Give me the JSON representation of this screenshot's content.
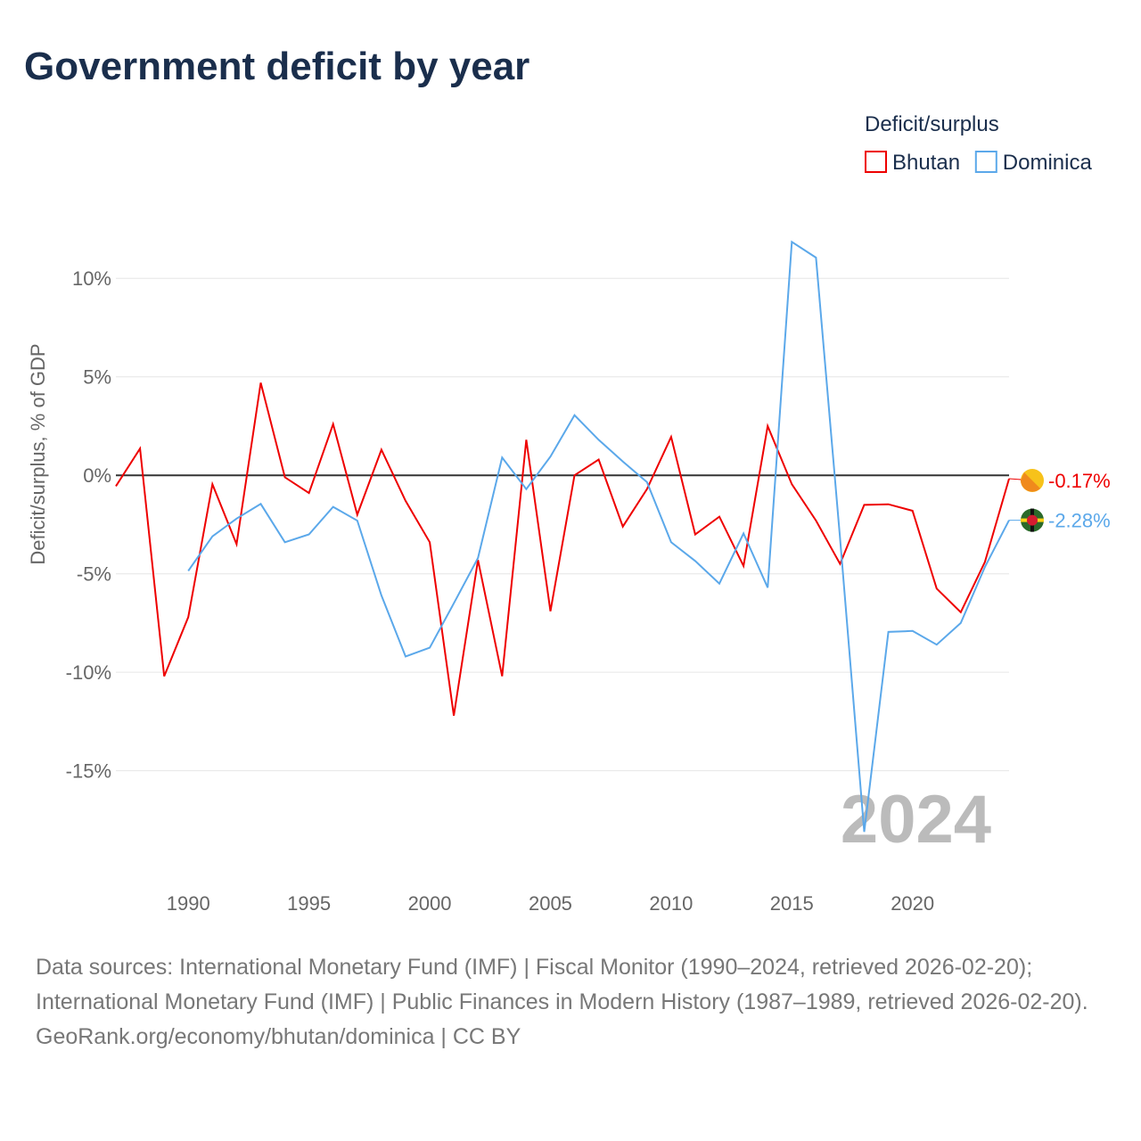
{
  "title": "Government deficit by year",
  "footer": {
    "sources": "Data sources: International Monetary Fund (IMF) | Fiscal Monitor (1990–2024, retrieved 2026-02-20); International Monetary Fund (IMF) | Public Finances in Modern History (1987–1989, retrieved 2026-02-20).",
    "credit": "GeoRank.org/economy/bhutan/dominica | CC BY"
  },
  "chart_data": {
    "type": "line",
    "title": "Government deficit by year",
    "ylabel": "Deficit/surplus, % of GDP",
    "xlabel": "",
    "legend_title": "Deficit/surplus",
    "legend_position": "top-right",
    "year_watermark": "2024",
    "xlim": [
      1987,
      2024
    ],
    "ylim": [
      -18.5,
      12.5
    ],
    "x_ticks": [
      1990,
      1995,
      2000,
      2005,
      2010,
      2015,
      2020
    ],
    "y_ticks": [
      10,
      5,
      0,
      -5,
      -10,
      -15
    ],
    "y_tick_labels": [
      "10%",
      "5%",
      "0%",
      "-5%",
      "-10%",
      "-15%"
    ],
    "series": [
      {
        "name": "Bhutan",
        "color": "#ee0000",
        "end_label": "-0.17%",
        "flag": "bhutan-flag",
        "x": [
          1987,
          1988,
          1989,
          1990,
          1991,
          1992,
          1993,
          1994,
          1995,
          1996,
          1997,
          1998,
          1999,
          2000,
          2001,
          2002,
          2003,
          2004,
          2005,
          2006,
          2007,
          2008,
          2009,
          2010,
          2011,
          2012,
          2013,
          2014,
          2015,
          2016,
          2017,
          2018,
          2019,
          2020,
          2021,
          2022,
          2023,
          2024
        ],
        "values": [
          -0.55,
          1.36,
          -10.2,
          -7.2,
          -0.45,
          -3.5,
          4.7,
          -0.1,
          -0.9,
          2.6,
          -2.0,
          1.3,
          -1.3,
          -3.4,
          -12.2,
          -4.3,
          -10.2,
          1.8,
          -6.9,
          0.0,
          0.8,
          -2.6,
          -0.7,
          1.95,
          -3.0,
          -2.1,
          -4.6,
          2.5,
          -0.45,
          -2.3,
          -4.5,
          -1.5,
          -1.47,
          -1.8,
          -5.75,
          -6.95,
          -4.4,
          -0.17
        ]
      },
      {
        "name": "Dominica",
        "color": "#5ba8ea",
        "end_label": "-2.28%",
        "flag": "dominica-flag",
        "x": [
          1990,
          1991,
          1992,
          1993,
          1994,
          1995,
          1996,
          1997,
          1998,
          1999,
          2000,
          2001,
          2002,
          2003,
          2004,
          2005,
          2006,
          2007,
          2008,
          2009,
          2010,
          2011,
          2012,
          2013,
          2014,
          2015,
          2016,
          2017,
          2018,
          2019,
          2020,
          2021,
          2022,
          2023,
          2024
        ],
        "values": [
          -4.85,
          -3.1,
          -2.2,
          -1.45,
          -3.4,
          -3.0,
          -1.6,
          -2.3,
          -6.1,
          -9.2,
          -8.75,
          -6.5,
          -4.2,
          0.9,
          -0.7,
          0.95,
          3.05,
          1.8,
          0.7,
          -0.35,
          -3.4,
          -4.35,
          -5.5,
          -2.95,
          -5.7,
          11.85,
          11.05,
          -3.2,
          -18.1,
          -7.95,
          -7.9,
          -8.6,
          -7.5,
          -4.65,
          -2.28
        ]
      }
    ]
  }
}
